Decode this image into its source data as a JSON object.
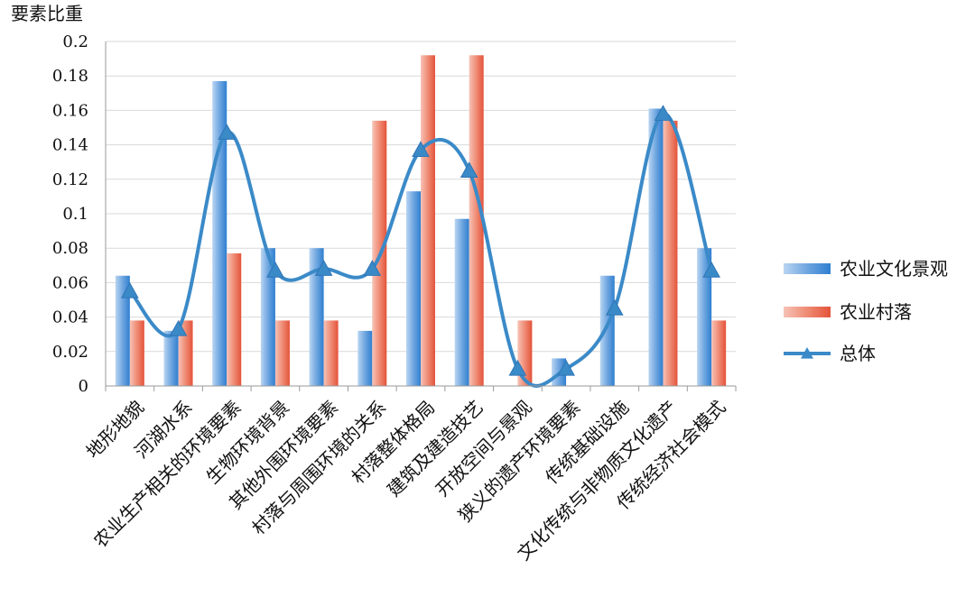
{
  "chart_data": {
    "type": "bar",
    "ylabel": "要素比重",
    "xlabel": "",
    "ylim": [
      0,
      0.2
    ],
    "yticks": [
      "0",
      "0.02",
      "0.04",
      "0.06",
      "0.08",
      "0.1",
      "0.12",
      "0.14",
      "0.16",
      "0.18",
      "0.2"
    ],
    "grid": true,
    "legend_position": "right",
    "categories": [
      "地形地貌",
      "河湖水系",
      "农业生产相关的环境要素",
      "生物环境背景",
      "其他外围环境要素",
      "村落与周围环境的关系",
      "村落整体格局",
      "建筑及建造技艺",
      "开放空间与景观",
      "狭义的遗产环境要素",
      "传统基础设施",
      "文化传统与非物质文化遗产",
      "传统经济社会模式"
    ],
    "series": [
      {
        "name": "农业文化景观",
        "kind": "bar",
        "color": "#4a8fd6",
        "values": [
          0.064,
          0.032,
          0.177,
          0.08,
          0.08,
          0.032,
          0.113,
          0.097,
          0,
          0.016,
          0.064,
          0.161,
          0.08
        ]
      },
      {
        "name": "农业村落",
        "kind": "bar",
        "color": "#e8604a",
        "values": [
          0.038,
          0.038,
          0.077,
          0.038,
          0.038,
          0.154,
          0.192,
          0.192,
          0.038,
          0,
          0,
          0.154,
          0.038
        ]
      },
      {
        "name": "总体",
        "kind": "line",
        "color": "#3b8ac8",
        "marker": "triangle",
        "values": [
          0.055,
          0.033,
          0.147,
          0.067,
          0.068,
          0.068,
          0.137,
          0.125,
          0.01,
          0.01,
          0.045,
          0.158,
          0.067
        ]
      }
    ]
  }
}
